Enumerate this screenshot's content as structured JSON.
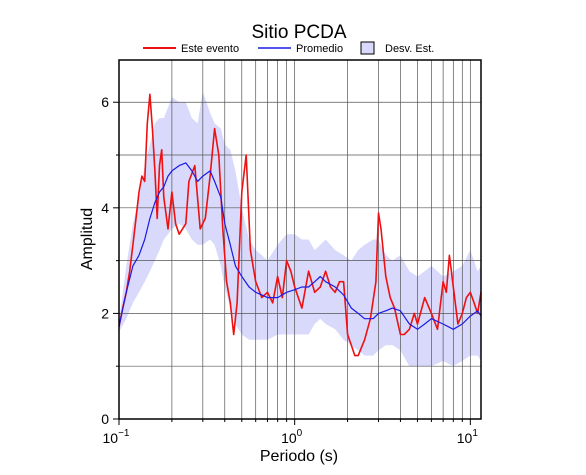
{
  "chart_data": {
    "type": "line",
    "title": "Sitio PCDA",
    "xlabel": "Periodo (s)",
    "ylabel": "Amplitud",
    "xscale": "log",
    "xlim": [
      0.1,
      11.5
    ],
    "ylim": [
      0,
      6.8
    ],
    "x_ticks": [
      {
        "value": 0.1,
        "base": "10",
        "exp": "−1"
      },
      {
        "value": 1,
        "base": "10",
        "exp": "0"
      },
      {
        "value": 10,
        "base": "10",
        "exp": "1"
      }
    ],
    "y_ticks": [
      0,
      2,
      4,
      6
    ],
    "grid": true,
    "legend_position": "top",
    "legend": [
      {
        "label": "Este evento",
        "kind": "line",
        "color": "#ee1111"
      },
      {
        "label": "Promedio",
        "kind": "line",
        "color": "#1a1ae6"
      },
      {
        "label": "Desv. Est.",
        "kind": "band",
        "color": "#d9d9fb"
      }
    ],
    "series": [
      {
        "name": "Este evento",
        "color": "#ee1111",
        "x": [
          0.1,
          0.105,
          0.11,
          0.115,
          0.12,
          0.125,
          0.13,
          0.135,
          0.14,
          0.145,
          0.15,
          0.155,
          0.16,
          0.165,
          0.17,
          0.175,
          0.18,
          0.19,
          0.2,
          0.21,
          0.22,
          0.23,
          0.24,
          0.25,
          0.27,
          0.29,
          0.31,
          0.33,
          0.35,
          0.37,
          0.39,
          0.41,
          0.43,
          0.45,
          0.47,
          0.5,
          0.53,
          0.56,
          0.6,
          0.65,
          0.7,
          0.75,
          0.8,
          0.85,
          0.9,
          0.95,
          1.0,
          1.1,
          1.2,
          1.3,
          1.4,
          1.5,
          1.6,
          1.7,
          1.8,
          1.9,
          2.0,
          2.1,
          2.2,
          2.3,
          2.5,
          2.7,
          2.9,
          3.0,
          3.1,
          3.3,
          3.5,
          3.7,
          4.0,
          4.2,
          4.5,
          4.8,
          5.0,
          5.5,
          6.0,
          6.5,
          7.0,
          7.3,
          7.6,
          8.0,
          8.5,
          9.0,
          9.5,
          10.0,
          10.5,
          11.0,
          11.5
        ],
        "values": [
          1.75,
          2.1,
          2.4,
          2.8,
          3.3,
          3.8,
          4.3,
          4.6,
          4.5,
          5.6,
          6.15,
          5.5,
          4.7,
          3.8,
          4.8,
          5.1,
          4.2,
          3.6,
          4.3,
          3.7,
          3.5,
          3.6,
          3.7,
          4.5,
          4.8,
          3.6,
          3.8,
          4.6,
          5.5,
          5.0,
          3.6,
          2.6,
          2.2,
          1.6,
          2.2,
          4.3,
          5.0,
          3.2,
          2.6,
          2.3,
          2.4,
          2.2,
          2.7,
          2.3,
          3.0,
          2.8,
          2.5,
          2.1,
          2.8,
          2.4,
          2.5,
          2.8,
          2.5,
          2.4,
          2.6,
          2.6,
          1.6,
          1.4,
          1.2,
          1.2,
          1.5,
          1.9,
          2.6,
          3.9,
          3.6,
          2.7,
          2.3,
          2.1,
          1.6,
          1.6,
          1.7,
          2.0,
          1.8,
          2.3,
          2.0,
          1.7,
          2.6,
          2.4,
          3.1,
          2.5,
          1.8,
          2.0,
          2.3,
          2.4,
          2.2,
          2.0,
          2.4
        ]
      },
      {
        "name": "Promedio",
        "color": "#1a1ae6",
        "x": [
          0.1,
          0.11,
          0.12,
          0.13,
          0.14,
          0.15,
          0.16,
          0.17,
          0.18,
          0.19,
          0.2,
          0.22,
          0.24,
          0.26,
          0.28,
          0.3,
          0.33,
          0.35,
          0.38,
          0.4,
          0.43,
          0.46,
          0.5,
          0.55,
          0.6,
          0.65,
          0.7,
          0.8,
          0.9,
          1.0,
          1.1,
          1.2,
          1.3,
          1.4,
          1.5,
          1.7,
          1.9,
          2.1,
          2.3,
          2.5,
          2.8,
          3.0,
          3.3,
          3.6,
          4.0,
          4.5,
          5.0,
          5.5,
          6.0,
          7.0,
          8.0,
          9.0,
          10.0,
          11.0,
          11.5
        ],
        "values": [
          1.75,
          2.4,
          2.9,
          3.1,
          3.4,
          3.8,
          4.1,
          4.3,
          4.4,
          4.6,
          4.7,
          4.8,
          4.85,
          4.7,
          4.5,
          4.6,
          4.7,
          4.5,
          4.2,
          3.7,
          3.3,
          2.9,
          2.7,
          2.5,
          2.4,
          2.35,
          2.3,
          2.3,
          2.4,
          2.45,
          2.5,
          2.5,
          2.6,
          2.7,
          2.6,
          2.5,
          2.35,
          2.1,
          2.0,
          1.9,
          1.9,
          2.0,
          2.05,
          2.1,
          2.05,
          1.8,
          1.7,
          1.8,
          1.9,
          1.8,
          1.7,
          1.8,
          1.95,
          2.05,
          1.95
        ]
      }
    ],
    "band": {
      "name": "Desv. Est.",
      "color": "#d9d9fb",
      "x": [
        0.1,
        0.11,
        0.12,
        0.13,
        0.14,
        0.15,
        0.16,
        0.17,
        0.18,
        0.19,
        0.2,
        0.22,
        0.24,
        0.26,
        0.28,
        0.3,
        0.33,
        0.35,
        0.38,
        0.4,
        0.43,
        0.46,
        0.5,
        0.55,
        0.6,
        0.65,
        0.7,
        0.8,
        0.9,
        1.0,
        1.1,
        1.2,
        1.3,
        1.4,
        1.5,
        1.7,
        1.9,
        2.1,
        2.3,
        2.5,
        2.8,
        3.0,
        3.3,
        3.6,
        4.0,
        4.5,
        5.0,
        5.5,
        6.0,
        7.0,
        8.0,
        9.0,
        10.0,
        11.0,
        11.5
      ],
      "upper": [
        1.85,
        2.9,
        3.7,
        4.2,
        4.8,
        5.2,
        5.6,
        5.7,
        5.7,
        5.9,
        6.1,
        6.0,
        6.0,
        5.7,
        5.6,
        6.2,
        5.8,
        5.6,
        5.5,
        5.2,
        5.1,
        4.7,
        4.0,
        3.4,
        3.2,
        3.1,
        3.0,
        3.3,
        3.5,
        3.5,
        3.4,
        3.4,
        3.2,
        3.3,
        3.4,
        3.2,
        3.1,
        3.0,
        3.2,
        3.3,
        3.4,
        3.4,
        3.1,
        3.0,
        3.1,
        2.8,
        2.7,
        2.8,
        2.9,
        2.7,
        2.8,
        2.9,
        3.2,
        2.8,
        2.9
      ],
      "lower": [
        1.65,
        1.9,
        2.2,
        2.4,
        2.6,
        2.8,
        3.0,
        3.2,
        3.4,
        3.5,
        3.6,
        3.7,
        3.6,
        3.4,
        3.3,
        3.3,
        3.4,
        3.3,
        2.9,
        2.5,
        2.1,
        1.8,
        1.6,
        1.5,
        1.5,
        1.5,
        1.5,
        1.6,
        1.6,
        1.6,
        1.6,
        1.6,
        1.8,
        1.9,
        1.8,
        1.7,
        1.5,
        1.4,
        1.3,
        1.2,
        1.2,
        1.3,
        1.4,
        1.4,
        1.3,
        1.0,
        1.0,
        1.0,
        1.0,
        1.1,
        1.0,
        1.1,
        1.2,
        1.2,
        1.1
      ]
    }
  }
}
